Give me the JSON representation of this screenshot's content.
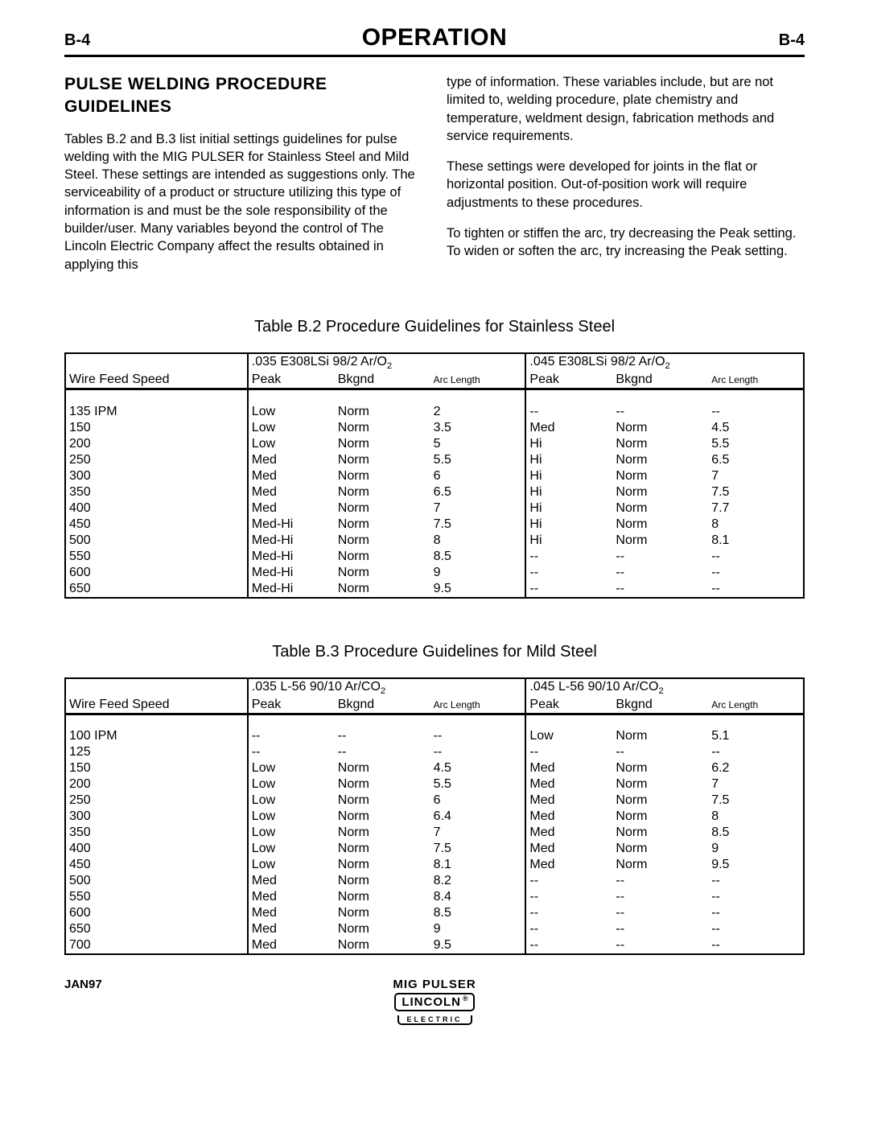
{
  "header": {
    "left": "B-4",
    "title": "OPERATION",
    "right": "B-4"
  },
  "section_heading": "PULSE WELDING PROCEDURE GUIDELINES",
  "para_left": "Tables B.2 and B.3 list initial settings guidelines for pulse welding with the MIG PULSER for Stainless Steel and Mild Steel.  These settings are intended as suggestions only.  The serviceability of a product or structure utilizing this type of information is and must be the sole responsibility of the builder/user.  Many variables beyond the control of The Lincoln Electric Company affect the results obtained in applying this",
  "para_r1": "type of information.  These variables include, but are not limited to, welding procedure, plate chemistry and temperature, weldment design, fabrication methods and service requirements.",
  "para_r2": "These settings were developed for joints in the flat or horizontal position.  Out-of-position work will require adjustments to these procedures.",
  "para_r3": "To tighten or stiffen the arc, try decreasing the Peak setting.  To widen or soften the arc, try increasing the Peak setting.",
  "tableB2": {
    "caption": "Table B.2 Procedure Guidelines for Stainless Steel",
    "group_a_pre": ".035 E308LSi  98/2  Ar/O",
    "group_a_sub": "2",
    "group_b_pre": ".045 E308LSi  98/2  Ar/O",
    "group_b_sub": "2",
    "cols": [
      "Wire Feed Speed",
      "Peak",
      "Bkgnd",
      "Arc Length",
      "Peak",
      "Bkgnd",
      "Arc Length"
    ],
    "rows": [
      [
        "135 IPM",
        "Low",
        "Norm",
        "2",
        "--",
        "--",
        "--"
      ],
      [
        "150",
        "Low",
        "Norm",
        "3.5",
        "Med",
        "Norm",
        "4.5"
      ],
      [
        "200",
        "Low",
        "Norm",
        "5",
        "Hi",
        "Norm",
        "5.5"
      ],
      [
        "250",
        "Med",
        "Norm",
        "5.5",
        "Hi",
        "Norm",
        "6.5"
      ],
      [
        "300",
        "Med",
        "Norm",
        "6",
        "Hi",
        "Norm",
        "7"
      ],
      [
        "350",
        "Med",
        "Norm",
        "6.5",
        "Hi",
        "Norm",
        "7.5"
      ],
      [
        "400",
        "Med",
        "Norm",
        "7",
        "Hi",
        "Norm",
        "7.7"
      ],
      [
        "450",
        "Med-Hi",
        "Norm",
        "7.5",
        "Hi",
        "Norm",
        "8"
      ],
      [
        "500",
        "Med-Hi",
        "Norm",
        "8",
        "Hi",
        "Norm",
        "8.1"
      ],
      [
        "550",
        "Med-Hi",
        "Norm",
        "8.5",
        "--",
        "--",
        "--"
      ],
      [
        "600",
        "Med-Hi",
        "Norm",
        "9",
        "--",
        "--",
        "--"
      ],
      [
        "650",
        "Med-Hi",
        "Norm",
        "9.5",
        "--",
        "--",
        "--"
      ]
    ]
  },
  "tableB3": {
    "caption": "Table B.3 Procedure Guidelines for Mild Steel",
    "group_a_pre": ".035 L-56 90/10  Ar/CO",
    "group_a_sub": "2",
    "group_b_pre": ".045 L-56 90/10  Ar/CO",
    "group_b_sub": "2",
    "cols": [
      "Wire Feed Speed",
      "Peak",
      "Bkgnd",
      "Arc Length",
      "Peak",
      "Bkgnd",
      "Arc Length"
    ],
    "rows": [
      [
        "100 IPM",
        "--",
        "--",
        "--",
        "Low",
        "Norm",
        "5.1"
      ],
      [
        "125",
        "--",
        "--",
        "--",
        "--",
        "--",
        "--"
      ],
      [
        "150",
        "Low",
        "Norm",
        "4.5",
        "Med",
        "Norm",
        "6.2"
      ],
      [
        "200",
        "Low",
        "Norm",
        "5.5",
        "Med",
        "Norm",
        "7"
      ],
      [
        "250",
        "Low",
        "Norm",
        "6",
        "Med",
        "Norm",
        "7.5"
      ],
      [
        "300",
        "Low",
        "Norm",
        "6.4",
        "Med",
        "Norm",
        "8"
      ],
      [
        "350",
        "Low",
        "Norm",
        "7",
        "Med",
        "Norm",
        "8.5"
      ],
      [
        "400",
        "Low",
        "Norm",
        "7.5",
        "Med",
        "Norm",
        "9"
      ],
      [
        "450",
        "Low",
        "Norm",
        "8.1",
        "Med",
        "Norm",
        "9.5"
      ],
      [
        "500",
        "Med",
        "Norm",
        "8.2",
        "--",
        "--",
        "--"
      ],
      [
        "550",
        "Med",
        "Norm",
        "8.4",
        "--",
        "--",
        "--"
      ],
      [
        "600",
        "Med",
        "Norm",
        "8.5",
        "--",
        "--",
        "--"
      ],
      [
        "650",
        "Med",
        "Norm",
        "9",
        "--",
        "--",
        "--"
      ],
      [
        "700",
        "Med",
        "Norm",
        "9.5",
        "--",
        "--",
        "--"
      ]
    ]
  },
  "footer": {
    "left": "JAN97",
    "mid": "MIG PULSER",
    "logo_top": "LINCOLN",
    "logo_reg": "®",
    "logo_bot": "ELECTRIC"
  },
  "col_widths": [
    "21%",
    "10%",
    "11%",
    "11%",
    "10%",
    "11%",
    "11%"
  ]
}
